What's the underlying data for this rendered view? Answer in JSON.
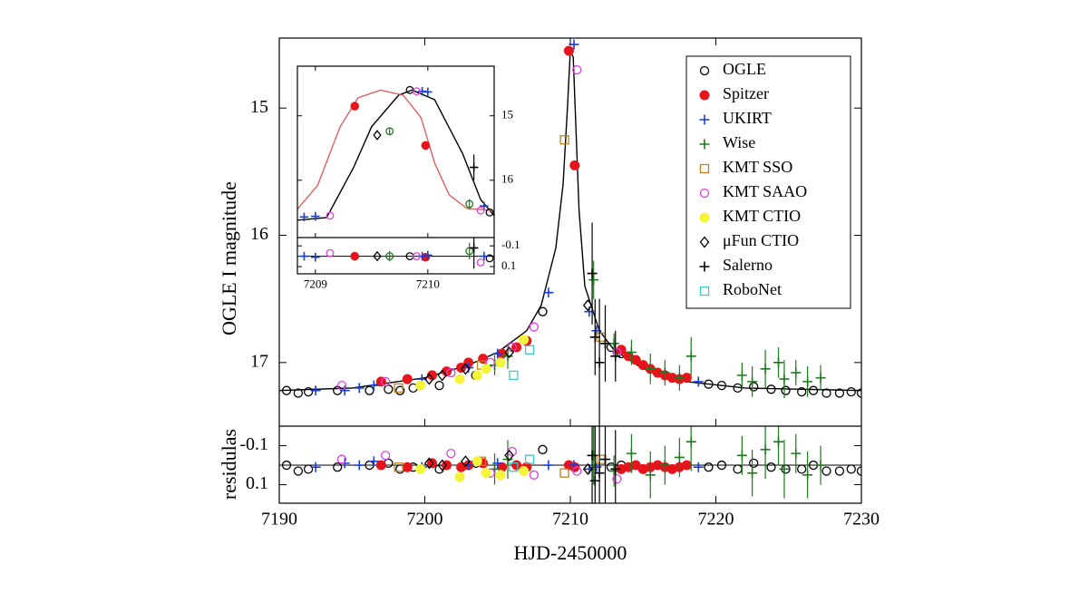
{
  "chart_data": [
    {
      "type": "scatter",
      "x_label": "HJD-2450000",
      "y_label": "OGLE I magnitude",
      "residual_label": "residulas",
      "xlim": [
        7190,
        7230
      ],
      "xticks": [
        7190,
        7200,
        7210,
        7220,
        7230
      ],
      "ylim": [
        17.5,
        14.45
      ],
      "yticks": [
        15,
        16,
        17
      ],
      "residual_ylim": [
        0.195,
        -0.2
      ],
      "residual_yticks": [
        -0.1,
        0.1
      ],
      "legend": "upper right",
      "model": {
        "color": "#000000",
        "x": [
          7190,
          7195,
          7200,
          7203,
          7205,
          7207,
          7208,
          7209,
          7209.5,
          7209.8,
          7210.0,
          7210.2,
          7210.4,
          7210.6,
          7211,
          7212,
          7213,
          7215,
          7218,
          7222,
          7230
        ],
        "values": [
          17.22,
          17.2,
          17.12,
          17.02,
          16.92,
          16.75,
          16.55,
          16.1,
          15.6,
          15.0,
          14.55,
          14.6,
          15.2,
          15.8,
          16.4,
          16.75,
          16.9,
          17.05,
          17.15,
          17.2,
          17.22
        ]
      },
      "series": [
        {
          "name": "OGLE",
          "color": "#000000",
          "marker": "open-circle",
          "x": [
            7190.5,
            7191.3,
            7192.0,
            7194.0,
            7196.2,
            7197.5,
            7198.3,
            7199.2,
            7201.0,
            7203.5,
            7208.1,
            7212.8,
            7213.5,
            7219.5,
            7220.4,
            7221.5,
            7222.6,
            7223.8,
            7224.8,
            7225.9,
            7226.7,
            7227.6,
            7228.5,
            7229.3,
            7230.0
          ],
          "values": [
            17.22,
            17.24,
            17.23,
            17.22,
            17.22,
            17.21,
            17.22,
            17.2,
            17.18,
            17.1,
            16.6,
            16.88,
            16.93,
            17.17,
            17.18,
            17.2,
            17.19,
            17.21,
            17.22,
            17.23,
            17.22,
            17.24,
            17.24,
            17.23,
            17.24
          ],
          "residuals": [
            0.0,
            0.03,
            0.02,
            0.01,
            0.0,
            -0.01,
            0.02,
            0.01,
            0.02,
            -0.01,
            -0.08,
            0.01,
            0.0,
            0.01,
            0.0,
            0.02,
            -0.01,
            0.01,
            0.02,
            0.02,
            0.0,
            0.03,
            0.03,
            0.02,
            0.03
          ]
        },
        {
          "name": "Spitzer",
          "color": "#e8141c",
          "marker": "filled-circle",
          "x": [
            7197.0,
            7198.8,
            7200.5,
            7201.5,
            7202.5,
            7203.0,
            7204.0,
            7205.3,
            7206.3,
            7207.0,
            7209.9,
            7210.3,
            7213.5,
            7214.0,
            7214.5,
            7215.0,
            7215.5,
            7216.0,
            7216.5,
            7217.0,
            7217.5,
            7218.0
          ],
          "values": [
            17.15,
            17.13,
            17.1,
            17.07,
            17.04,
            17.0,
            16.97,
            16.93,
            16.88,
            16.83,
            14.55,
            15.45,
            16.9,
            16.95,
            16.98,
            17.02,
            17.05,
            17.08,
            17.1,
            17.12,
            17.13,
            17.12
          ],
          "residuals": [
            0.0,
            0.01,
            -0.01,
            0.0,
            0.01,
            0.0,
            -0.01,
            0.01,
            0.0,
            0.01,
            0.0,
            0.01,
            0.02,
            0.01,
            0.0,
            0.02,
            0.01,
            0.0,
            0.01,
            0.02,
            0.01,
            0.0
          ]
        },
        {
          "name": "UKIRT",
          "color": "#1a3fd6",
          "marker": "plus",
          "x": [
            7192.5,
            7194.5,
            7195.5,
            7196.5,
            7199.8,
            7203.0,
            7205.0,
            7208.5,
            7210.25,
            7211.3,
            7211.8,
            7218.8
          ],
          "values": [
            17.22,
            17.22,
            17.2,
            17.18,
            17.13,
            17.04,
            16.93,
            16.45,
            14.5,
            16.6,
            16.75,
            17.15
          ],
          "residuals": [
            0.01,
            -0.01,
            0.0,
            -0.02,
            0.01,
            0.0,
            -0.01,
            0.0,
            0.0,
            0.02,
            0.01,
            0.01
          ]
        },
        {
          "name": "Wise",
          "color": "#1e7a1e",
          "marker": "plus",
          "x": [
            7204.8,
            7205.7,
            7211.6,
            7213.0,
            7214.2,
            7215.5,
            7216.5,
            7217.5,
            7218.3,
            7221.8,
            7222.5,
            7223.4,
            7224.3,
            7224.7,
            7225.5,
            7226.3,
            7227.2
          ],
          "values": [
            17.02,
            16.95,
            16.35,
            16.85,
            16.92,
            17.05,
            17.08,
            17.12,
            16.95,
            17.1,
            17.15,
            17.05,
            17.0,
            17.13,
            17.08,
            17.15,
            17.12
          ],
          "errors": [
            0.08,
            0.1,
            0.15,
            0.08,
            0.1,
            0.12,
            0.1,
            0.1,
            0.15,
            0.1,
            0.12,
            0.15,
            0.12,
            0.15,
            0.1,
            0.12,
            0.1
          ],
          "residuals": [
            0.02,
            -0.03,
            -0.05,
            0.03,
            -0.06,
            0.05,
            0.0,
            -0.04,
            -0.12,
            -0.05,
            0.04,
            -0.08,
            -0.12,
            0.02,
            -0.06,
            0.05,
            0.0
          ]
        },
        {
          "name": "KMT SSO",
          "color": "#c08020",
          "marker": "open-square",
          "x": [
            7198.2,
            7203.9,
            7209.6,
            7212.1
          ],
          "values": [
            17.2,
            17.02,
            15.25,
            16.8
          ],
          "residuals": [
            0.01,
            -0.02,
            0.04,
            -0.03
          ]
        },
        {
          "name": "KMT SAAO",
          "color": "#e040e0",
          "marker": "open-circle",
          "x": [
            7194.3,
            7197.3,
            7201.8,
            7204.5,
            7206.0,
            7207.5,
            7210.45,
            7213.2
          ],
          "values": [
            17.18,
            17.15,
            17.08,
            17.0,
            16.88,
            16.72,
            14.7,
            16.92
          ],
          "residuals": [
            -0.03,
            -0.05,
            -0.06,
            0.04,
            -0.07,
            0.05,
            0.03,
            0.07
          ]
        },
        {
          "name": "KMT CTIO",
          "color": "#f4f43a",
          "marker": "filled-circle",
          "x": [
            7199.7,
            7202.4,
            7203.6,
            7204.2,
            7205.2,
            7206.8
          ],
          "values": [
            17.18,
            17.13,
            17.1,
            17.05,
            17.0,
            16.82
          ],
          "residuals": [
            0.02,
            0.06,
            -0.02,
            0.04,
            0.05,
            0.03
          ]
        },
        {
          "name": "μFun CTIO",
          "color": "#000000",
          "marker": "open-diamond",
          "x": [
            7200.3,
            7201.2,
            7202.8,
            7205.8,
            7211.2
          ],
          "values": [
            17.13,
            17.1,
            17.05,
            16.92,
            16.55
          ],
          "residuals": [
            -0.01,
            0.0,
            -0.02,
            -0.05,
            0.02
          ]
        },
        {
          "name": "Salerno",
          "color": "#000000",
          "marker": "plus",
          "x": [
            7211.5,
            7211.7,
            7212.0,
            7212.4,
            7213.1
          ],
          "values": [
            16.3,
            16.8,
            17.0,
            16.85,
            16.95
          ],
          "errors": [
            0.4,
            0.3,
            0.5,
            0.3,
            0.2
          ],
          "residuals": [
            -0.05,
            0.08,
            0.04,
            -0.03,
            0.02
          ]
        },
        {
          "name": "RoboNet",
          "color": "#40c8c8",
          "marker": "open-square",
          "x": [
            7206.1,
            7207.2
          ],
          "values": [
            17.1,
            16.9
          ],
          "residuals": [
            0.01,
            -0.03
          ]
        }
      ]
    },
    {
      "type": "scatter",
      "xlim": [
        7208.84,
        7210.59
      ],
      "xticks": [
        7209,
        7210
      ],
      "ylim": [
        16.89,
        14.23
      ],
      "yticks": [
        15,
        16
      ],
      "residual_ylim": [
        0.17,
        -0.18
      ],
      "residual_yticks": [
        -0.1,
        0.1
      ],
      "yaxis_side": "right",
      "models": [
        {
          "color": "#000000",
          "x": [
            7208.84,
            7209.1,
            7209.34,
            7209.5,
            7209.74,
            7209.86,
            7210.06,
            7210.31,
            7210.47,
            7210.59
          ],
          "values": [
            16.62,
            16.58,
            15.8,
            15.17,
            14.68,
            14.6,
            14.75,
            15.59,
            16.3,
            16.55
          ]
        },
        {
          "color": "#e06060",
          "x": [
            7208.84,
            7209.02,
            7209.22,
            7209.38,
            7209.58,
            7209.78,
            7209.94,
            7210.06,
            7210.19,
            7210.35,
            7210.59
          ],
          "values": [
            16.45,
            16.08,
            15.17,
            14.72,
            14.6,
            14.68,
            15.03,
            15.73,
            16.23,
            16.44,
            16.47
          ]
        }
      ],
      "series": [
        {
          "color": "#000000",
          "marker": "open-circle",
          "x": [
            7209.84,
            7210.55
          ],
          "values": [
            14.6,
            16.5
          ],
          "residuals": [
            0.0,
            0.02
          ]
        },
        {
          "color": "#e8141c",
          "marker": "filled-circle",
          "x": [
            7209.35,
            7209.98
          ],
          "values": [
            14.85,
            15.46
          ],
          "residuals": [
            0.0,
            0.01
          ]
        },
        {
          "color": "#1a3fd6",
          "marker": "plus",
          "x": [
            7208.9,
            7209.0,
            7209.95,
            7210.0,
            7210.5
          ],
          "values": [
            16.57,
            16.56,
            14.62,
            14.63,
            16.4
          ],
          "residuals": [
            0.0,
            0.01,
            0.0,
            -0.01,
            0.0
          ]
        },
        {
          "color": "#e040e0",
          "marker": "open-circle",
          "x": [
            7209.13,
            7209.9,
            7210.47
          ],
          "values": [
            16.55,
            14.62,
            16.47
          ],
          "residuals": [
            -0.03,
            0.0,
            0.06
          ]
        },
        {
          "color": "#1e7a1e",
          "marker": "open-circle",
          "x": [
            7209.66,
            7210.37
          ],
          "values": [
            15.24,
            16.37
          ],
          "errors": [
            0.05,
            0.08
          ],
          "residuals": [
            0.0,
            -0.05
          ]
        },
        {
          "color": "#000000",
          "marker": "plus",
          "x": [
            7210.41
          ],
          "values": [
            15.8
          ],
          "errors": [
            0.2
          ],
          "residuals": [
            -0.08
          ]
        },
        {
          "color": "#000000",
          "marker": "open-diamond",
          "x": [
            7209.55
          ],
          "values": [
            15.3
          ],
          "residuals": [
            0.0
          ]
        }
      ]
    }
  ]
}
